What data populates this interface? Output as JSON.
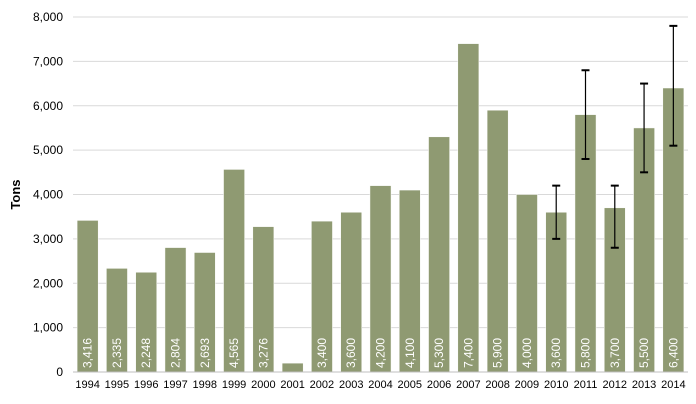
{
  "chart_data": {
    "type": "bar",
    "title": "",
    "xlabel": "",
    "ylabel": "Tons",
    "ylim": [
      0,
      8000
    ],
    "yticks": [
      0,
      1000,
      2000,
      3000,
      4000,
      5000,
      6000,
      7000,
      8000
    ],
    "ytick_labels": [
      "0",
      "1,000",
      "2,000",
      "3,000",
      "4,000",
      "5,000",
      "6,000",
      "7,000",
      "8,000"
    ],
    "grid": "horizontal",
    "legend": "none",
    "bar_color": "#8f9a72",
    "bar_border_color": "#ffffff",
    "grid_color": "#d9d9d9",
    "errorbar_color": "#000000",
    "categories": [
      "1994",
      "1995",
      "1996",
      "1997",
      "1998",
      "1999",
      "2000",
      "2001",
      "2002",
      "2003",
      "2004",
      "2005",
      "2006",
      "2007",
      "2008",
      "2009",
      "2010",
      "2011",
      "2012",
      "2013",
      "2014"
    ],
    "values": [
      3416,
      2335,
      2248,
      2804,
      2693,
      4565,
      3276,
      200,
      3400,
      3600,
      4200,
      4100,
      5300,
      7400,
      5900,
      4000,
      3600,
      5800,
      3700,
      5500,
      6400
    ],
    "value_labels": [
      "3,416",
      "2,335",
      "2,248",
      "2,804",
      "2,693",
      "4,565",
      "3,276",
      "",
      "3,400",
      "3,600",
      "4,200",
      "4,100",
      "5,300",
      "7,400",
      "5,900",
      "4,000",
      "3,600",
      "5,800",
      "3,700",
      "5,500",
      "6,400"
    ],
    "error_bars": [
      {
        "category": "2010",
        "low": 3000,
        "high": 4200
      },
      {
        "category": "2011",
        "low": 4800,
        "high": 6800
      },
      {
        "category": "2012",
        "low": 2800,
        "high": 4200
      },
      {
        "category": "2013",
        "low": 4500,
        "high": 6500
      },
      {
        "category": "2014",
        "low": 5100,
        "high": 7800
      }
    ]
  }
}
